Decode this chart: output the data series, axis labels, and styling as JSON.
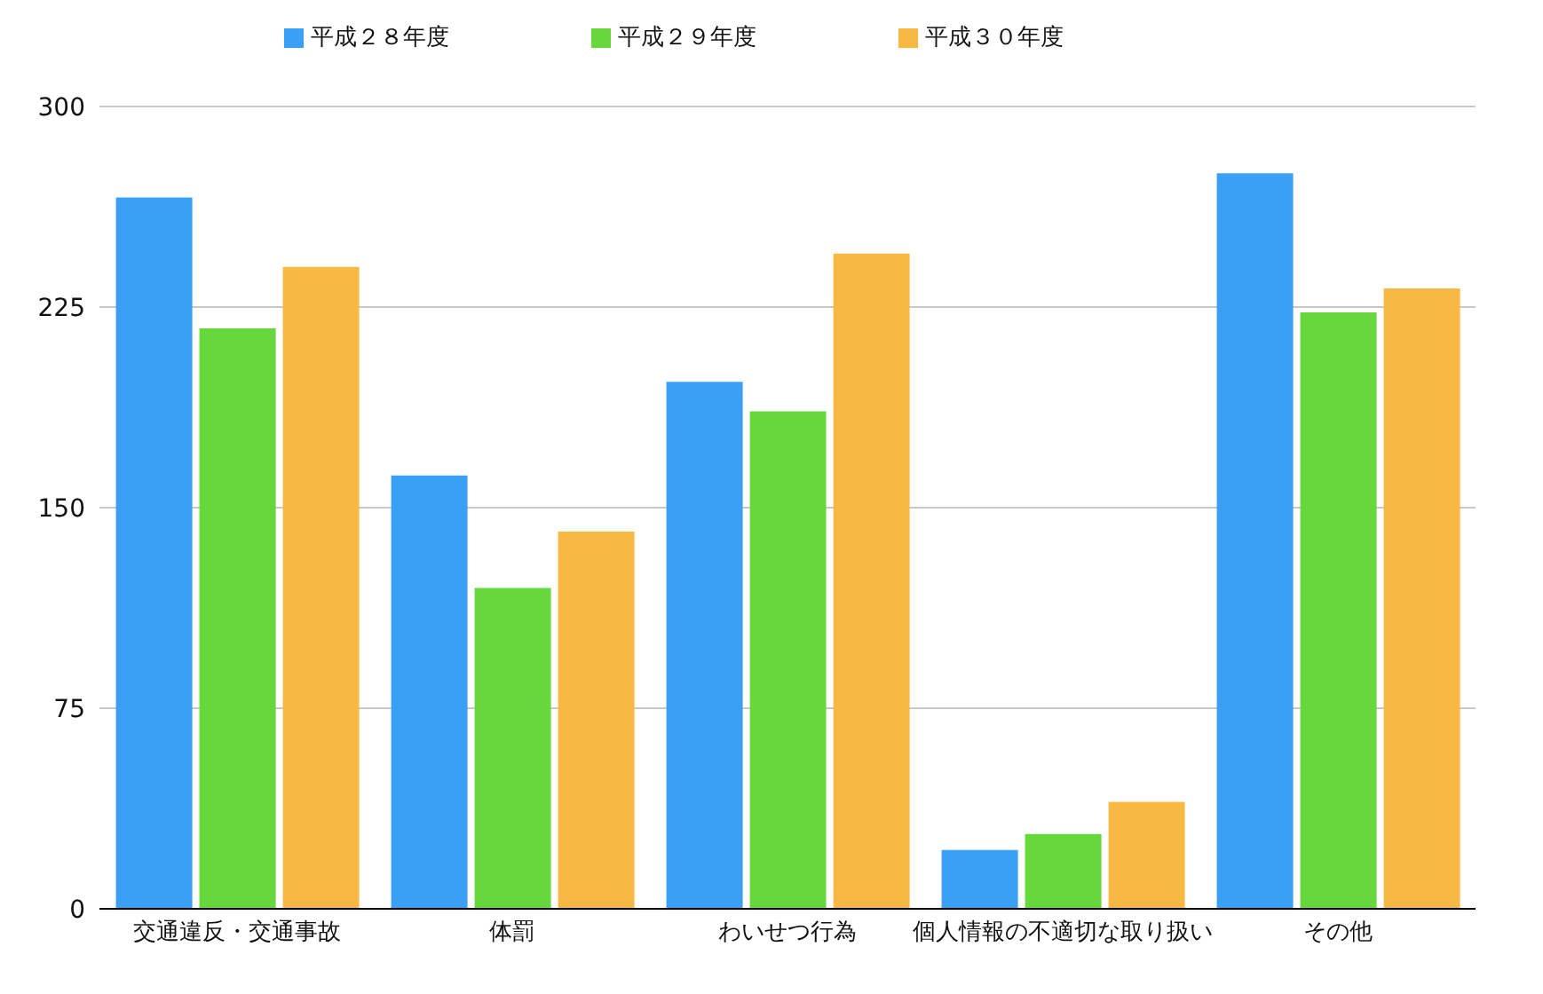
{
  "chart_data": {
    "type": "bar",
    "categories": [
      "交通違反・交通事故",
      "体罰",
      "わいせつ行為",
      "個人情報の不適切な取り扱い",
      "その他"
    ],
    "series": [
      {
        "name": "平成２８年度",
        "color": "#3aa0f5",
        "values": [
          266,
          162,
          197,
          22,
          275
        ]
      },
      {
        "name": "平成２９年度",
        "color": "#66d83c",
        "values": [
          217,
          120,
          186,
          28,
          223
        ]
      },
      {
        "name": "平成３０年度",
        "color": "#f7b944",
        "values": [
          240,
          141,
          245,
          40,
          232
        ]
      }
    ],
    "ylim": [
      0,
      300
    ],
    "yticks": [
      0,
      75,
      150,
      225,
      300
    ],
    "grid": "y",
    "legend": "top"
  }
}
